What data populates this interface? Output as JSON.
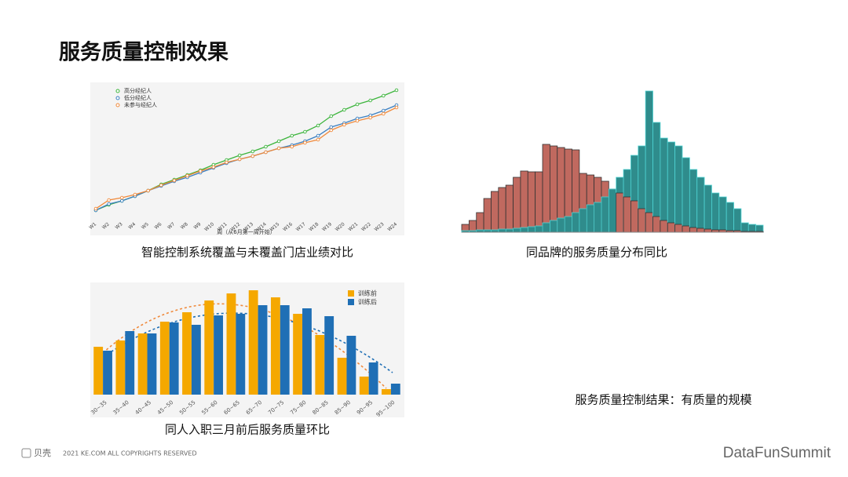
{
  "title": "服务质量控制效果",
  "conclusion": "服务质量控制结果：有质量的规模",
  "footer": {
    "brand": "贝壳",
    "copyright": "2021 KE.COM ALL COPYRIGHTS  RESERVED",
    "summit": "DataFunSummit"
  },
  "chart_data": [
    {
      "type": "line",
      "caption": "智能控制系统覆盖与未覆盖门店业绩对比",
      "x_label": "周（从6月第一周开始）",
      "categories": [
        "W1",
        "W2",
        "W3",
        "W4",
        "W5",
        "W6",
        "W7",
        "W8",
        "W9",
        "W10",
        "W11",
        "W12",
        "W13",
        "W14",
        "W15",
        "W16",
        "W17",
        "W18",
        "W19",
        "W20",
        "W21",
        "W22",
        "W23",
        "W24"
      ],
      "ylim": [
        0,
        170
      ],
      "series": [
        {
          "name": "高分经纪人",
          "color": "#3cb43c",
          "values": [
            7,
            14,
            19,
            25,
            32,
            40,
            46,
            52,
            58,
            65,
            71,
            77,
            82,
            88,
            95,
            102,
            107,
            115,
            127,
            135,
            142,
            147,
            153,
            160
          ]
        },
        {
          "name": "低分经纪人",
          "color": "#3a7fc1",
          "values": [
            7,
            15,
            19,
            25,
            32,
            38,
            44,
            49,
            55,
            61,
            67,
            72,
            76,
            81,
            86,
            90,
            95,
            102,
            113,
            118,
            124,
            128,
            134,
            141
          ]
        },
        {
          "name": "未参与经纪人",
          "color": "#f08a3c",
          "values": [
            9,
            20,
            23,
            27,
            32,
            39,
            45,
            51,
            57,
            62,
            68,
            72,
            76,
            81,
            86,
            88,
            93,
            97,
            109,
            116,
            121,
            125,
            130,
            138
          ]
        }
      ]
    },
    {
      "type": "bar",
      "mode": "overlap",
      "caption": "同品牌的服务质量分布同比",
      "categories": [
        null,
        null,
        null,
        null,
        null,
        null,
        null,
        null,
        null,
        null,
        null,
        null,
        null,
        null,
        null,
        null,
        null,
        null,
        null,
        null,
        null,
        null,
        null,
        null,
        null,
        null,
        null,
        null,
        null,
        null,
        null,
        null,
        null,
        null,
        null,
        null,
        null,
        null,
        null,
        null,
        null
      ],
      "ylim": [
        0,
        190
      ],
      "series": [
        {
          "color": "#c0695f",
          "stroke": "#333333",
          "values": [
            10,
            15,
            25,
            43,
            52,
            57,
            60,
            70,
            78,
            77,
            77,
            112,
            110,
            108,
            106,
            105,
            75,
            73,
            70,
            65,
            55,
            50,
            45,
            40,
            30,
            25,
            20,
            15,
            12,
            10,
            8,
            6,
            5,
            4,
            3,
            3,
            2,
            2,
            1,
            1,
            1
          ]
        },
        {
          "color": "#2f8c8c",
          "stroke": "#4fd4d4",
          "values": [
            2,
            2,
            3,
            3,
            3,
            4,
            4,
            5,
            6,
            7,
            8,
            12,
            15,
            18,
            20,
            25,
            30,
            35,
            38,
            45,
            55,
            70,
            80,
            98,
            110,
            180,
            140,
            120,
            115,
            110,
            95,
            80,
            70,
            60,
            50,
            45,
            38,
            30,
            12,
            10,
            9
          ]
        }
      ]
    },
    {
      "type": "bar",
      "mode": "grouped",
      "caption": "同人入职三月前后服务质量环比",
      "categories": [
        "30~35",
        "35~40",
        "40~45",
        "45~50",
        "50~55",
        "55~60",
        "60~65",
        "65~70",
        "70~75",
        "75~80",
        "80~85",
        "85~90",
        "90~95",
        "95~100"
      ],
      "ylim": [
        0,
        140
      ],
      "series": [
        {
          "name": "训练前",
          "color": "#f5a800",
          "values": [
            61,
            69,
            78,
            93,
            105,
            120,
            129,
            133,
            124,
            103,
            76,
            47,
            23,
            7
          ]
        },
        {
          "name": "训练后",
          "color": "#1f6fb5",
          "values": [
            56,
            81,
            78,
            92,
            89,
            101,
            103,
            114,
            114,
            110,
            100,
            75,
            41,
            14
          ]
        }
      ]
    }
  ]
}
